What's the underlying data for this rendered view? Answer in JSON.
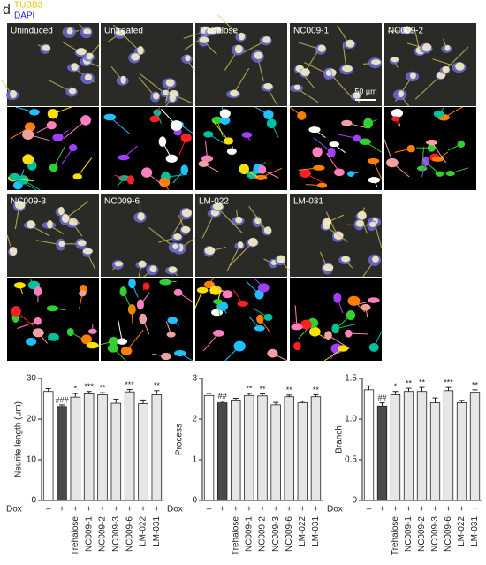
{
  "panel_label": "d",
  "stain_legend": [
    "TUBB3",
    "DAPI"
  ],
  "image_labels": [
    "Uninduced",
    "Untreated",
    "Trehalose",
    "NC009-1",
    "NC009-2",
    "NC009-3",
    "NC009-6",
    "LM-022",
    "LM-031"
  ],
  "scale_bar": "50 μm",
  "chart_data": [
    {
      "type": "bar",
      "ylabel": "Neurite length (μm)",
      "row_label": "Dox",
      "dox": [
        "–",
        "+",
        "+",
        "+",
        "+",
        "+",
        "+",
        "+",
        "+"
      ],
      "categories": [
        null,
        null,
        "Trehalose",
        "NC009-1",
        "NC009-2",
        "NC009-3",
        "NC009-6",
        "LM-022",
        "LM-031"
      ],
      "values": [
        26.8,
        23.1,
        25.4,
        26.2,
        26.0,
        23.9,
        26.7,
        23.8,
        26.0
      ],
      "errors": [
        0.7,
        0.4,
        0.9,
        0.6,
        0.5,
        1.0,
        0.6,
        0.9,
        1.0
      ],
      "annotations": [
        null,
        "###",
        "*",
        "***",
        "**",
        null,
        "***",
        null,
        "**"
      ],
      "colors": [
        "#ffffff",
        "#4a4a4a",
        "#e6e6e6",
        "#e6e6e6",
        "#e6e6e6",
        "#e6e6e6",
        "#e6e6e6",
        "#e6e6e6",
        "#e6e6e6"
      ],
      "ylim": [
        0,
        30
      ],
      "yticks": [
        0,
        10,
        20,
        30
      ]
    },
    {
      "type": "bar",
      "ylabel": "Process",
      "row_label": "Dox",
      "dox": [
        "–",
        "+",
        "+",
        "+",
        "+",
        "+",
        "+",
        "+",
        "+"
      ],
      "categories": [
        null,
        null,
        "Trehalose",
        "NC009-1",
        "NC009-2",
        "NC009-3",
        "NC009-6",
        "LM-022",
        "LM-031"
      ],
      "values": [
        2.58,
        2.4,
        2.47,
        2.58,
        2.57,
        2.35,
        2.55,
        2.4,
        2.55
      ],
      "errors": [
        0.05,
        0.04,
        0.04,
        0.05,
        0.05,
        0.06,
        0.04,
        0.04,
        0.05
      ],
      "annotations": [
        null,
        "##",
        null,
        "**",
        "**",
        null,
        "**",
        null,
        "**"
      ],
      "colors": [
        "#ffffff",
        "#4a4a4a",
        "#e6e6e6",
        "#e6e6e6",
        "#e6e6e6",
        "#e6e6e6",
        "#e6e6e6",
        "#e6e6e6",
        "#e6e6e6"
      ],
      "ylim": [
        0,
        3
      ],
      "yticks": [
        0,
        1,
        2,
        3
      ]
    },
    {
      "type": "bar",
      "ylabel": "Branch",
      "row_label": "Dox",
      "dox": [
        "–",
        "+",
        "+",
        "+",
        "+",
        "+",
        "+",
        "+",
        "+"
      ],
      "categories": [
        null,
        null,
        "Trehalose",
        "NC009-1",
        "NC009-2",
        "NC009-3",
        "NC009-6",
        "LM-022",
        "LM-031"
      ],
      "values": [
        1.36,
        1.16,
        1.3,
        1.34,
        1.34,
        1.2,
        1.35,
        1.2,
        1.33
      ],
      "errors": [
        0.05,
        0.04,
        0.04,
        0.04,
        0.05,
        0.06,
        0.04,
        0.03,
        0.03
      ],
      "annotations": [
        null,
        "##",
        "*",
        "**",
        "**",
        null,
        "***",
        null,
        "**"
      ],
      "colors": [
        "#ffffff",
        "#4a4a4a",
        "#e6e6e6",
        "#e6e6e6",
        "#e6e6e6",
        "#e6e6e6",
        "#e6e6e6",
        "#e6e6e6",
        "#e6e6e6"
      ],
      "ylim": [
        0,
        1.5
      ],
      "yticks": [
        0,
        0.5,
        {
          "value": 1,
          "label": "1.0"
        },
        1.5
      ]
    }
  ]
}
